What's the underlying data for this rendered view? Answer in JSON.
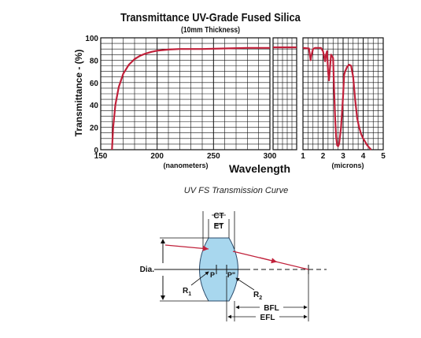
{
  "chart_data": {
    "type": "line",
    "title": "Transmittance UV-Grade Fused Silica",
    "subtitle": "(10mm Thickness)",
    "ylabel": "Transmittance - (%)",
    "xlabel": "Wavelength",
    "ylim": [
      0,
      100
    ],
    "y_ticks": [
      "0",
      "20",
      "40",
      "60",
      "80",
      "100"
    ],
    "grid": true,
    "panels": [
      {
        "name": "uv",
        "unit_label": "(nanometers)",
        "xlim": [
          150,
          300
        ],
        "x_ticks": [
          "150",
          "200",
          "250",
          "300"
        ],
        "series": [
          {
            "x": [
              160,
              161,
              163,
              166,
              170,
              175,
              180,
              185,
              190,
              195,
              200,
              210,
              220,
              240,
              260,
              280,
              300
            ],
            "y": [
              0,
              20,
              40,
              56,
              68,
              76,
              81,
              84,
              86,
              87.5,
              88.5,
              89.5,
              90,
              90,
              90.5,
              91,
              91
            ]
          }
        ]
      },
      {
        "name": "vis",
        "xlim": [
          300,
          500
        ],
        "series": [
          {
            "x": [
              300,
              400,
              500
            ],
            "y": [
              91.5,
              91.5,
              91.5
            ]
          }
        ]
      },
      {
        "name": "ir",
        "unit_label": "(microns)",
        "xlim": [
          1,
          5
        ],
        "x_ticks": [
          "1",
          "2",
          "3",
          "4",
          "5"
        ],
        "series": [
          {
            "x": [
              1.0,
              1.3,
              1.35,
              1.38,
              1.42,
              1.5,
              1.6,
              1.9,
              2.0,
              2.1,
              2.15,
              2.2,
              2.25,
              2.3,
              2.4,
              2.5,
              2.55,
              2.6,
              2.65,
              2.7,
              2.75,
              2.8,
              2.9,
              3.0,
              3.05,
              3.1,
              3.2,
              3.3,
              3.4,
              3.5,
              3.6,
              3.7,
              3.8,
              3.9,
              4.0,
              4.1,
              4.2,
              4.3,
              4.4
            ],
            "y": [
              91,
              90.5,
              84,
              80,
              84,
              90,
              91,
              91,
              88,
              79,
              85,
              88,
              70,
              62,
              85,
              82,
              55,
              30,
              12,
              4,
              3,
              5,
              20,
              48,
              67,
              70,
              74,
              76,
              75,
              65,
              45,
              28,
              20,
              14,
              10,
              7,
              4,
              2,
              0
            ]
          }
        ]
      }
    ]
  },
  "caption": "UV FS Transmission Curve",
  "diagram": {
    "labels": {
      "ct": "CT",
      "et": "ET",
      "dia": "Dia.",
      "p": "P",
      "p_prime": "P\"",
      "r1": "R",
      "r1_sub": "1",
      "r2": "R",
      "r2_sub": "2",
      "bfl": "BFL",
      "efl": "EFL"
    }
  },
  "colors": {
    "curve": "#c0203a",
    "lens_fill": "#a8d7ee",
    "lens_stroke": "#2a4a6a",
    "ray": "#c0203a"
  }
}
